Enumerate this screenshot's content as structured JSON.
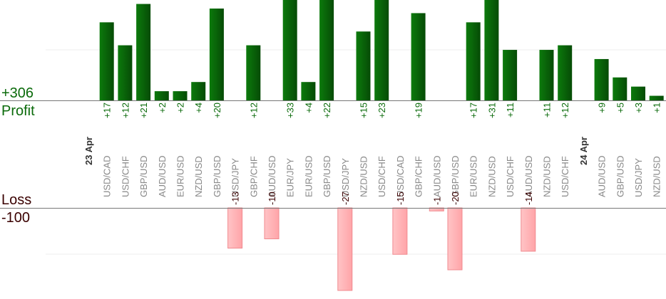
{
  "labels": {
    "total": "+306",
    "profit": "Profit",
    "loss": "Loss",
    "loss_total": "-100"
  },
  "colors": {
    "profit_bar": "#0a6a0a",
    "loss_bar": "#ffb6b8",
    "profit_text": "#0a6a0a",
    "loss_text": "#3a0000",
    "axis_text": "#888888",
    "date_text": "#333333"
  },
  "chart_data": {
    "type": "bar",
    "profit_ylim": [
      0,
      24
    ],
    "loss_ylim": [
      -27,
      0
    ],
    "categories": [
      {
        "date": "23 Apr"
      },
      {
        "pair": "USD/CAD",
        "value": 17,
        "label": "+17"
      },
      {
        "pair": "USD/CHF",
        "value": 12,
        "label": "+12"
      },
      {
        "pair": "GBP/USD",
        "value": 21,
        "label": "+21"
      },
      {
        "pair": "AUD/USD",
        "value": 2,
        "label": "+2"
      },
      {
        "pair": "EUR/USD",
        "value": 2,
        "label": "+2"
      },
      {
        "pair": "NZD/USD",
        "value": 4,
        "label": "+4"
      },
      {
        "pair": "GBP/USD",
        "value": 20,
        "label": "+20"
      },
      {
        "pair": "USD/JPY",
        "value": -13,
        "label": "-13"
      },
      {
        "pair": "GBP/CHF",
        "value": 12,
        "label": "+12"
      },
      {
        "pair": "AUD/USD",
        "value": -10,
        "label": "-10"
      },
      {
        "pair": "EUR/JPY",
        "value": 33,
        "label": "+33"
      },
      {
        "pair": "EUR/USD",
        "value": 4,
        "label": "+4"
      },
      {
        "pair": "GBP/USD",
        "value": 22,
        "label": "+22"
      },
      {
        "pair": "USD/JPY",
        "value": -27,
        "label": "-27"
      },
      {
        "pair": "NZD/USD",
        "value": 15,
        "label": "+15"
      },
      {
        "pair": "USD/CHF",
        "value": 23,
        "label": "+23"
      },
      {
        "pair": "USD/CAD",
        "value": -15,
        "label": "-15"
      },
      {
        "pair": "GBP/CHF",
        "value": 19,
        "label": "+19"
      },
      {
        "pair": "AUD/USD",
        "value": -1,
        "label": "-1"
      },
      {
        "pair": "GBP/USD",
        "value": -20,
        "label": "-20"
      },
      {
        "pair": "EUR/USD",
        "value": 17,
        "label": "+17"
      },
      {
        "pair": "NZD/USD",
        "value": 31,
        "label": "+31"
      },
      {
        "pair": "USD/CHF",
        "value": 11,
        "label": "+11"
      },
      {
        "pair": "AUD/USD",
        "value": -14,
        "label": "-14"
      },
      {
        "pair": "NZD/USD",
        "value": 11,
        "label": "+11"
      },
      {
        "pair": "USD/CHF",
        "value": 12,
        "label": "+12"
      },
      {
        "date": "24 Apr"
      },
      {
        "pair": "AUD/USD",
        "value": 9,
        "label": "+9"
      },
      {
        "pair": "GBP/USD",
        "value": 5,
        "label": "+5"
      },
      {
        "pair": "USD/JPY",
        "value": 3,
        "label": "+3"
      },
      {
        "pair": "NZD/USD",
        "value": 1,
        "label": "+1"
      }
    ]
  }
}
